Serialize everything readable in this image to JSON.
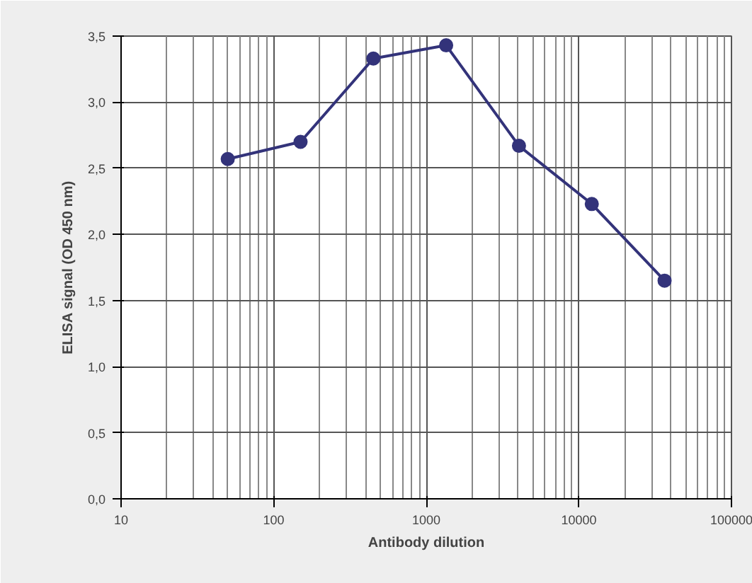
{
  "chart_data": {
    "type": "line",
    "xlabel": "Antibody dilution",
    "ylabel": "ELISA signal (OD 450 nm)",
    "x": [
      50,
      150,
      450,
      1350,
      4050,
      12150,
      36450
    ],
    "series": [
      {
        "color": "#33337a",
        "values": [
          2.57,
          2.7,
          3.33,
          3.43,
          2.67,
          2.23,
          1.65
        ]
      }
    ],
    "log": "x",
    "xlim": [
      10,
      100000
    ],
    "xticks": [
      10,
      100,
      1000,
      10000,
      100000
    ],
    "ylim": [
      0,
      3.5
    ],
    "yticks": [
      {
        "value": 0,
        "label": "0,0"
      },
      {
        "value": 0.5,
        "label": "0,5"
      },
      {
        "value": 1,
        "label": "1,0"
      },
      {
        "value": 1.5,
        "label": "1,5"
      },
      {
        "value": 2,
        "label": "2,0"
      },
      {
        "value": 2.5,
        "label": "2,5"
      },
      {
        "value": 3,
        "label": "3,0"
      },
      {
        "value": 3.5,
        "label": "3,5"
      }
    ],
    "grid": true,
    "marker": "circle",
    "line_style": "solid"
  }
}
